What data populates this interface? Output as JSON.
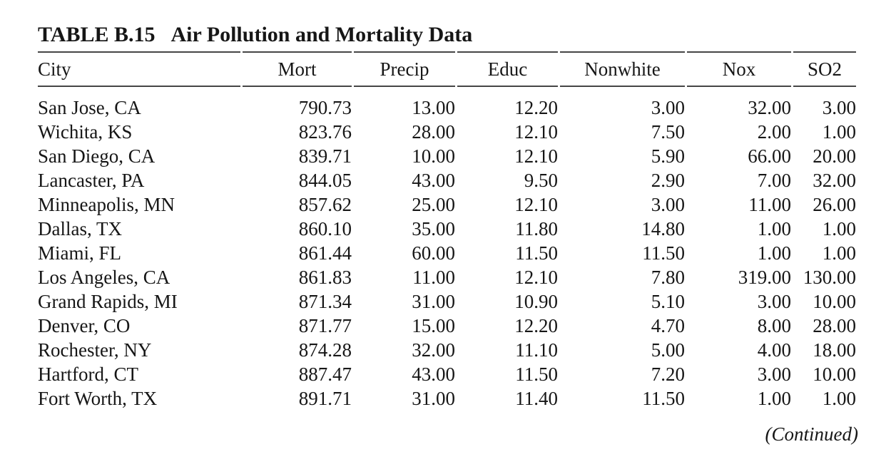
{
  "title": {
    "label": "TABLE B.15",
    "text": "Air Pollution and Mortality Data"
  },
  "table": {
    "columns": [
      {
        "key": "city",
        "label": "City"
      },
      {
        "key": "mort",
        "label": "Mort"
      },
      {
        "key": "precip",
        "label": "Precip"
      },
      {
        "key": "educ",
        "label": "Educ"
      },
      {
        "key": "nonwhite",
        "label": "Nonwhite"
      },
      {
        "key": "nox",
        "label": "Nox"
      },
      {
        "key": "so2",
        "label": "SO2"
      }
    ],
    "rows": [
      [
        "San Jose, CA",
        "790.73",
        "13.00",
        "12.20",
        "3.00",
        "32.00",
        "3.00"
      ],
      [
        "Wichita, KS",
        "823.76",
        "28.00",
        "12.10",
        "7.50",
        "2.00",
        "1.00"
      ],
      [
        "San Diego, CA",
        "839.71",
        "10.00",
        "12.10",
        "5.90",
        "66.00",
        "20.00"
      ],
      [
        "Lancaster, PA",
        "844.05",
        "43.00",
        "9.50",
        "2.90",
        "7.00",
        "32.00"
      ],
      [
        "Minneapolis, MN",
        "857.62",
        "25.00",
        "12.10",
        "3.00",
        "11.00",
        "26.00"
      ],
      [
        "Dallas, TX",
        "860.10",
        "35.00",
        "11.80",
        "14.80",
        "1.00",
        "1.00"
      ],
      [
        "Miami, FL",
        "861.44",
        "60.00",
        "11.50",
        "11.50",
        "1.00",
        "1.00"
      ],
      [
        "Los Angeles, CA",
        "861.83",
        "11.00",
        "12.10",
        "7.80",
        "319.00",
        "130.00"
      ],
      [
        "Grand Rapids, MI",
        "871.34",
        "31.00",
        "10.90",
        "5.10",
        "3.00",
        "10.00"
      ],
      [
        "Denver, CO",
        "871.77",
        "15.00",
        "12.20",
        "4.70",
        "8.00",
        "28.00"
      ],
      [
        "Rochester, NY",
        "874.28",
        "32.00",
        "11.10",
        "5.00",
        "4.00",
        "18.00"
      ],
      [
        "Hartford, CT",
        "887.47",
        "43.00",
        "11.50",
        "7.20",
        "3.00",
        "10.00"
      ],
      [
        "Fort Worth, TX",
        "891.71",
        "31.00",
        "11.40",
        "11.50",
        "1.00",
        "1.00"
      ]
    ]
  },
  "footer": {
    "continued_note": "(Continued)"
  },
  "colors": {
    "text": "#161616",
    "rule": "#454545",
    "background": "#ffffff"
  }
}
